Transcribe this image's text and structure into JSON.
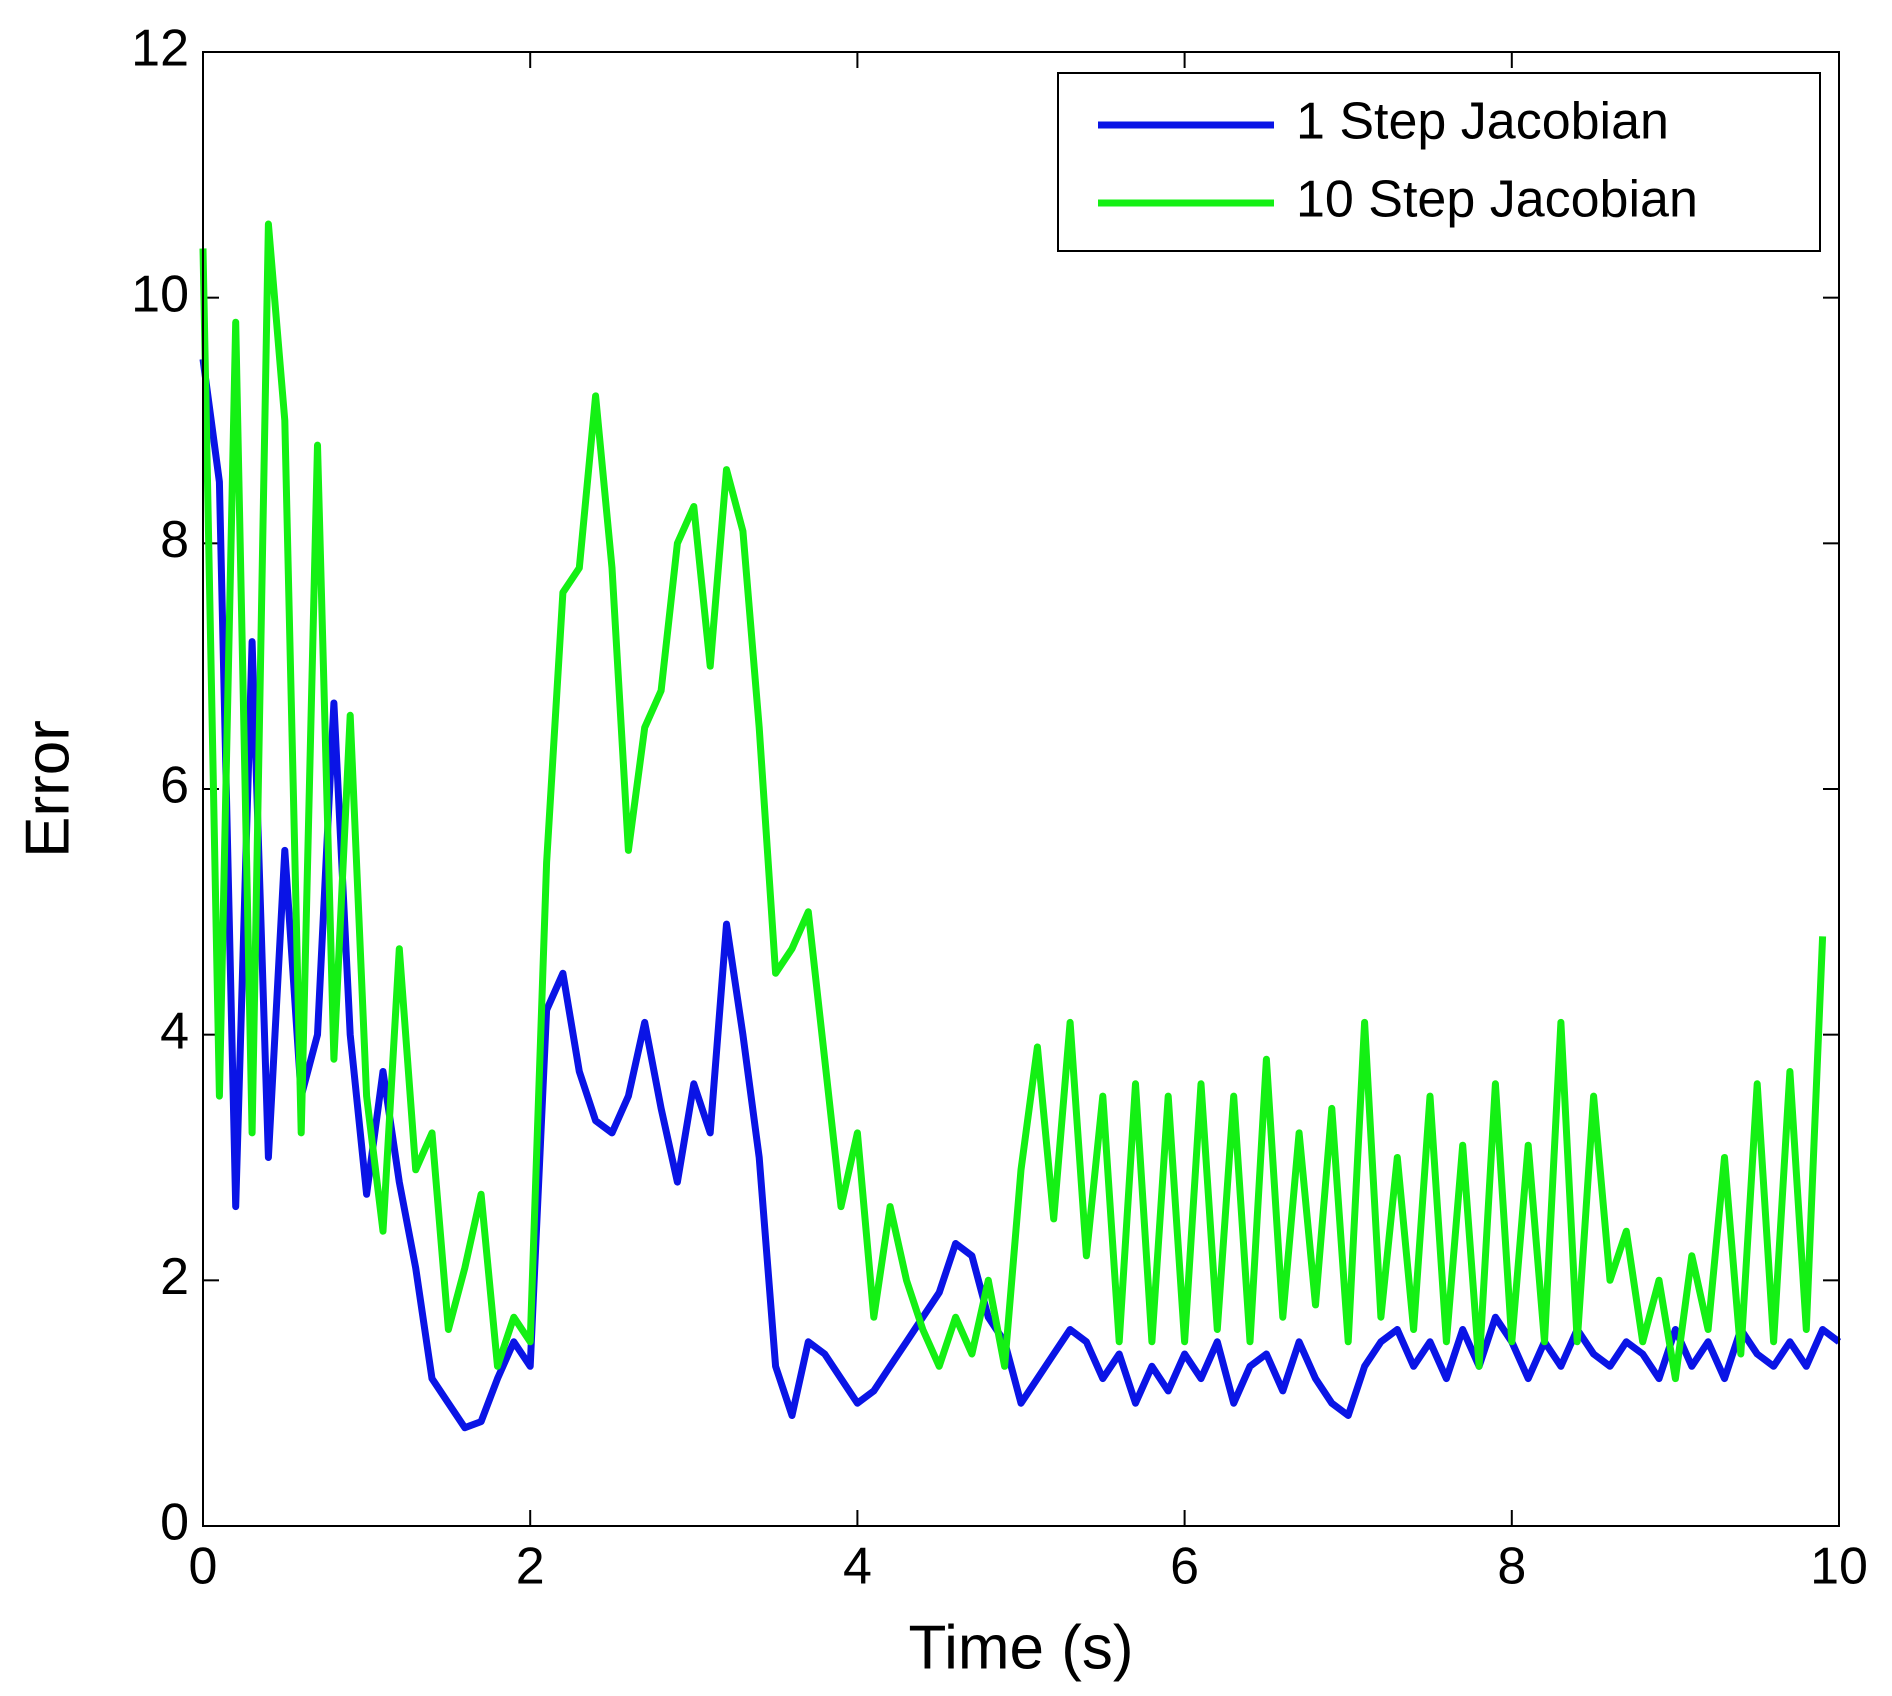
{
  "chart_data": {
    "type": "line",
    "xlabel": "Time (s)",
    "ylabel": "Error",
    "x": [
      0,
      0.1,
      0.2,
      0.3,
      0.4,
      0.5,
      0.6,
      0.7,
      0.8,
      0.9,
      1,
      1.1,
      1.2,
      1.3,
      1.4,
      1.5,
      1.6,
      1.7,
      1.8,
      1.9,
      2,
      2.1,
      2.2,
      2.3,
      2.4,
      2.5,
      2.6,
      2.7,
      2.8,
      2.9,
      3,
      3.1,
      3.2,
      3.3,
      3.4,
      3.5,
      3.6,
      3.7,
      3.8,
      3.9,
      4,
      4.1,
      4.2,
      4.3,
      4.4,
      4.5,
      4.6,
      4.7,
      4.8,
      4.9,
      5,
      5.1,
      5.2,
      5.3,
      5.4,
      5.5,
      5.6,
      5.7,
      5.8,
      5.9,
      6,
      6.1,
      6.2,
      6.3,
      6.4,
      6.5,
      6.6,
      6.7,
      6.8,
      6.9,
      7,
      7.1,
      7.2,
      7.3,
      7.4,
      7.5,
      7.6,
      7.7,
      7.8,
      7.9,
      8,
      8.1,
      8.2,
      8.3,
      8.4,
      8.5,
      8.6,
      8.7,
      8.8,
      8.9,
      9,
      9.1,
      9.2,
      9.3,
      9.4,
      9.5,
      9.6,
      9.7,
      9.8,
      9.9,
      10
    ],
    "series": [
      {
        "name": "1 Step Jacobian",
        "color": "#0a14e6",
        "values": [
          9.5,
          8.5,
          2.6,
          7.2,
          3.0,
          5.5,
          3.5,
          4.0,
          6.7,
          4.0,
          2.7,
          3.7,
          2.8,
          2.1,
          1.2,
          1.0,
          0.8,
          0.85,
          1.2,
          1.5,
          1.3,
          4.2,
          4.5,
          3.7,
          3.3,
          3.2,
          3.5,
          4.1,
          3.4,
          2.8,
          3.6,
          3.2,
          4.9,
          4.0,
          3.0,
          1.3,
          0.9,
          1.5,
          1.4,
          1.2,
          1.0,
          1.1,
          1.3,
          1.5,
          1.7,
          1.9,
          2.3,
          2.2,
          1.7,
          1.5,
          1.0,
          1.2,
          1.4,
          1.6,
          1.5,
          1.2,
          1.4,
          1.0,
          1.3,
          1.1,
          1.4,
          1.2,
          1.5,
          1.0,
          1.3,
          1.4,
          1.1,
          1.5,
          1.2,
          1.0,
          0.9,
          1.3,
          1.5,
          1.6,
          1.3,
          1.5,
          1.2,
          1.6,
          1.3,
          1.7,
          1.5,
          1.2,
          1.5,
          1.3,
          1.6,
          1.4,
          1.3,
          1.5,
          1.4,
          1.2,
          1.6,
          1.3,
          1.5,
          1.2,
          1.6,
          1.4,
          1.3,
          1.5,
          1.3,
          1.6,
          1.5
        ]
      },
      {
        "name": "10 Step Jacobian",
        "color": "#14f014",
        "values": [
          10.4,
          3.5,
          9.8,
          3.2,
          10.6,
          9.0,
          3.2,
          8.8,
          3.8,
          6.6,
          3.5,
          2.4,
          4.7,
          2.9,
          3.2,
          1.6,
          2.1,
          2.7,
          1.3,
          1.7,
          1.5,
          5.4,
          7.6,
          7.8,
          9.2,
          7.8,
          5.5,
          6.5,
          6.8,
          8.0,
          8.3,
          7.0,
          8.6,
          8.1,
          6.5,
          4.5,
          4.7,
          5.0,
          3.8,
          2.6,
          3.2,
          1.7,
          2.6,
          2.0,
          1.6,
          1.3,
          1.7,
          1.4,
          2.0,
          1.3,
          2.9,
          3.9,
          2.5,
          4.1,
          2.2,
          3.5,
          1.5,
          3.6,
          1.5,
          3.5,
          1.5,
          3.6,
          1.6,
          3.5,
          1.5,
          3.8,
          1.7,
          3.2,
          1.8,
          3.4,
          1.5,
          4.1,
          1.7,
          3.0,
          1.6,
          3.5,
          1.5,
          3.1,
          1.3,
          3.6,
          1.5,
          3.1,
          1.5,
          4.1,
          1.5,
          3.5,
          2.0,
          2.4,
          1.5,
          2.0,
          1.2,
          2.2,
          1.6,
          3.0,
          1.4,
          3.6,
          1.5,
          3.7,
          1.6,
          4.8,
          null
        ]
      }
    ],
    "xlim": [
      0,
      10
    ],
    "xticks": [
      0,
      2,
      4,
      6,
      8,
      10
    ],
    "ylim": [
      0,
      12
    ],
    "yticks": [
      0,
      2,
      4,
      6,
      8,
      10,
      12
    ],
    "legend": "upper right"
  }
}
